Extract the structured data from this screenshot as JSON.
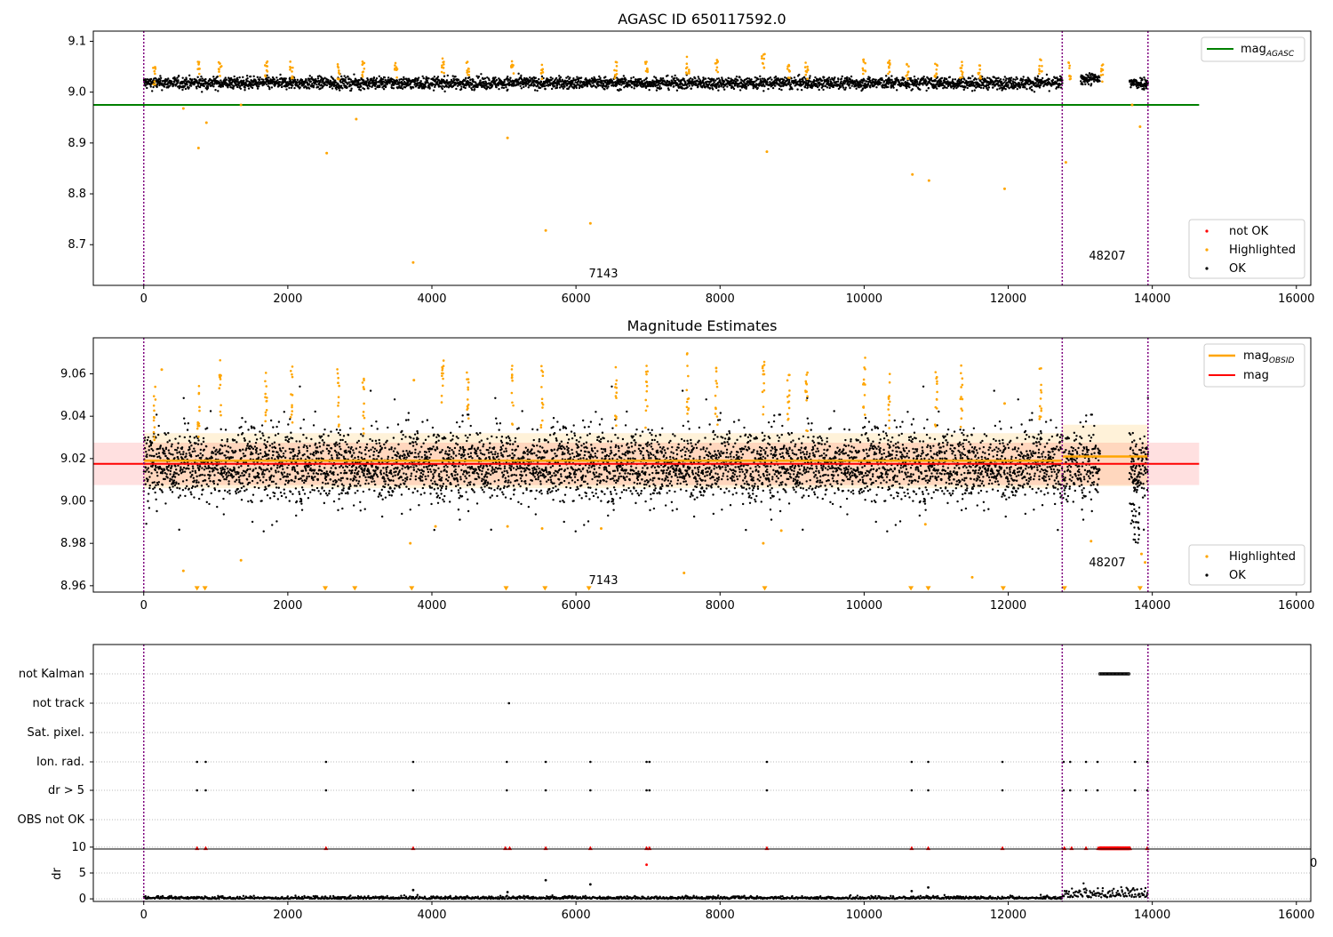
{
  "chart_data": [
    {
      "type": "scatter",
      "title": "AGASC ID 650117592.0",
      "xlim": [
        -700,
        16200
      ],
      "ylim": [
        8.62,
        9.12
      ],
      "x_ticks": [
        0,
        2000,
        4000,
        6000,
        8000,
        10000,
        12000,
        14000,
        16000
      ],
      "y_ticks": [
        8.7,
        8.8,
        8.9,
        9.0,
        9.1
      ],
      "y_tick_labels": [
        "8.7",
        "8.8",
        "8.9",
        "9.0",
        "9.1"
      ],
      "obs_boundaries": [
        0,
        12750,
        13940
      ],
      "obs_labels": [
        {
          "text": "7143",
          "x": 6200,
          "y": 8.64
        },
        {
          "text": "48207",
          "x": 13350,
          "y": 8.675
        }
      ],
      "reference_line": {
        "name": "magAGASC",
        "value": 8.975,
        "x_range": [
          -700,
          14650
        ],
        "color": "#008000"
      },
      "ok_band": {
        "center": 9.018,
        "spread": 0.012,
        "ranges": [
          [
            0,
            12750
          ],
          [
            13000,
            13270
          ],
          [
            13680,
            13940
          ]
        ]
      },
      "highlighted_peaks": [
        [
          150,
          9.05
        ],
        [
          760,
          9.06
        ],
        [
          1060,
          9.065
        ],
        [
          1700,
          9.065
        ],
        [
          2050,
          9.06
        ],
        [
          2700,
          9.06
        ],
        [
          3050,
          9.065
        ],
        [
          3500,
          9.06
        ],
        [
          4150,
          9.07
        ],
        [
          4500,
          9.065
        ],
        [
          5120,
          9.065
        ],
        [
          5530,
          9.06
        ],
        [
          6550,
          9.06
        ],
        [
          6980,
          9.06
        ],
        [
          7550,
          9.07
        ],
        [
          7950,
          9.065
        ],
        [
          8600,
          9.075
        ],
        [
          8950,
          9.06
        ],
        [
          9200,
          9.06
        ],
        [
          10000,
          9.07
        ],
        [
          10350,
          9.065
        ],
        [
          10600,
          9.06
        ],
        [
          11000,
          9.065
        ],
        [
          11350,
          9.06
        ],
        [
          11600,
          9.055
        ],
        [
          12450,
          9.065
        ],
        [
          12850,
          9.06
        ],
        [
          13300,
          9.055
        ]
      ],
      "highlighted_points": [
        [
          550,
          8.968
        ],
        [
          760,
          8.89
        ],
        [
          870,
          8.94
        ],
        [
          1350,
          8.975
        ],
        [
          2540,
          8.88
        ],
        [
          2950,
          8.947
        ],
        [
          3740,
          8.665
        ],
        [
          5050,
          8.91
        ],
        [
          5580,
          8.728
        ],
        [
          6200,
          8.742
        ],
        [
          8650,
          8.883
        ],
        [
          10670,
          8.838
        ],
        [
          10900,
          8.826
        ],
        [
          11950,
          8.81
        ],
        [
          12800,
          8.862
        ],
        [
          13830,
          8.932
        ],
        [
          13720,
          8.975
        ]
      ],
      "legend": [
        {
          "label": "not OK",
          "color": "#ff0000"
        },
        {
          "label": "Highlighted",
          "color": "#ffa500"
        },
        {
          "label": "OK",
          "color": "#000000"
        }
      ],
      "legend_line": {
        "text": "mag",
        "sub": "AGASC",
        "color": "#008000"
      }
    },
    {
      "type": "scatter",
      "title": "Magnitude Estimates",
      "xlim": [
        -700,
        16200
      ],
      "ylim": [
        8.957,
        9.077
      ],
      "x_ticks": [
        0,
        2000,
        4000,
        6000,
        8000,
        10000,
        12000,
        14000,
        16000
      ],
      "y_ticks": [
        8.96,
        8.98,
        9.0,
        9.02,
        9.04,
        9.06
      ],
      "y_tick_labels": [
        "8.96",
        "8.98",
        "9.00",
        "9.02",
        "9.04",
        "9.06"
      ],
      "obs_boundaries": [
        0,
        12750,
        13940
      ],
      "obs_labels": [
        {
          "text": "7143",
          "x": 6200,
          "y": 8.961
        },
        {
          "text": "48207",
          "x": 13350,
          "y": 8.971
        }
      ],
      "mag_line": {
        "value": 9.0175,
        "x_range": [
          -700,
          14650
        ],
        "band": [
          9.0075,
          9.0275
        ],
        "color": "#ff0000"
      },
      "mag_obsid_segments": [
        {
          "x_range": [
            0,
            12750
          ],
          "value": 9.019,
          "band": [
            9.006,
            9.032
          ]
        },
        {
          "x_range": [
            12750,
            13940
          ],
          "value": 9.021,
          "band": [
            9.007,
            9.036
          ]
        }
      ],
      "highlighted_peaks": [
        [
          150,
          9.055
        ],
        [
          760,
          9.06
        ],
        [
          1060,
          9.068
        ],
        [
          1700,
          9.066
        ],
        [
          2050,
          9.064
        ],
        [
          2700,
          9.063
        ],
        [
          3050,
          9.06
        ],
        [
          4150,
          9.07
        ],
        [
          4500,
          9.064
        ],
        [
          5120,
          9.065
        ],
        [
          5530,
          9.064
        ],
        [
          6550,
          9.064
        ],
        [
          6980,
          9.064
        ],
        [
          7550,
          9.07
        ],
        [
          7950,
          9.066
        ],
        [
          8600,
          9.07
        ],
        [
          8950,
          9.064
        ],
        [
          9200,
          9.062
        ],
        [
          10000,
          9.07
        ],
        [
          10350,
          9.064
        ],
        [
          11000,
          9.064
        ],
        [
          11350,
          9.064
        ],
        [
          12450,
          9.064
        ]
      ],
      "highlighted_points": [
        [
          250,
          9.062
        ],
        [
          550,
          8.967
        ],
        [
          1350,
          8.972
        ],
        [
          3700,
          8.98
        ],
        [
          3750,
          9.057
        ],
        [
          4050,
          8.988
        ],
        [
          5050,
          8.988
        ],
        [
          5530,
          8.987
        ],
        [
          6350,
          8.987
        ],
        [
          7500,
          8.966
        ],
        [
          8600,
          8.98
        ],
        [
          8850,
          8.986
        ],
        [
          10850,
          8.989
        ],
        [
          11500,
          8.964
        ],
        [
          11950,
          9.046
        ],
        [
          13150,
          8.981
        ],
        [
          13850,
          8.975
        ],
        [
          13900,
          8.971
        ]
      ],
      "lower_limit_markers": [
        740,
        850,
        2520,
        2930,
        3720,
        5030,
        5570,
        6180,
        8620,
        10650,
        10890,
        11930,
        12780,
        13830
      ],
      "legend": [
        {
          "label": "Highlighted",
          "color": "#ffa500"
        },
        {
          "label": "OK",
          "color": "#000000"
        }
      ],
      "legend_lines": [
        {
          "text": "mag",
          "sub": "OBSID",
          "color": "#ffa500"
        },
        {
          "text": "mag",
          "sub": "",
          "color": "#ff0000"
        }
      ]
    },
    {
      "type": "scatter",
      "title": "",
      "xlim": [
        -700,
        16200
      ],
      "x_ticks": [
        0,
        2000,
        4000,
        6000,
        8000,
        10000,
        12000,
        14000,
        16000
      ],
      "categories": [
        "not Kalman",
        "not track",
        "Sat. pixel.",
        "Ion. rad.",
        "dr > 5",
        "OBS not OK"
      ],
      "obs_boundaries": [
        0,
        12750,
        13940
      ],
      "flag_points": {
        "not Kalman": {
          "range": [
            13270,
            13680
          ]
        },
        "not track": [
          5070
        ],
        "Sat. pixel.": [],
        "Ion. rad.": [
          740,
          860,
          2530,
          3740,
          5040,
          5580,
          6200,
          6980,
          7020,
          8650,
          10660,
          10890,
          11920,
          12770,
          12860,
          13080,
          13240,
          13760,
          13930
        ],
        "dr > 5": [
          740,
          860,
          2530,
          3740,
          5040,
          5580,
          6200,
          6980,
          7020,
          8650,
          10660,
          10890,
          11920,
          12770,
          12860,
          13080,
          13240,
          13760,
          13930
        ],
        "OBS not OK": []
      },
      "dr_panel": {
        "ylabel": "dr",
        "ylim": [
          -0.5,
          10.5
        ],
        "y_ticks": [
          0,
          5,
          10
        ],
        "clipped_value": 9.8,
        "clipped_x": [
          740,
          860,
          2530,
          3740,
          5020,
          5080,
          5580,
          6200,
          6980,
          7020,
          8650,
          10660,
          10890,
          11920,
          12780,
          12880,
          13080,
          13250,
          13930
        ],
        "clipped_range": [
          13270,
          13690
        ],
        "extra_points": [
          [
            6980,
            6.6
          ],
          [
            5580,
            3.6
          ],
          [
            6200,
            2.8
          ],
          [
            10890,
            2.2
          ],
          [
            3740,
            1.7
          ],
          [
            10660,
            1.5
          ],
          [
            5050,
            1.3
          ]
        ],
        "tail_label": "0"
      }
    }
  ]
}
